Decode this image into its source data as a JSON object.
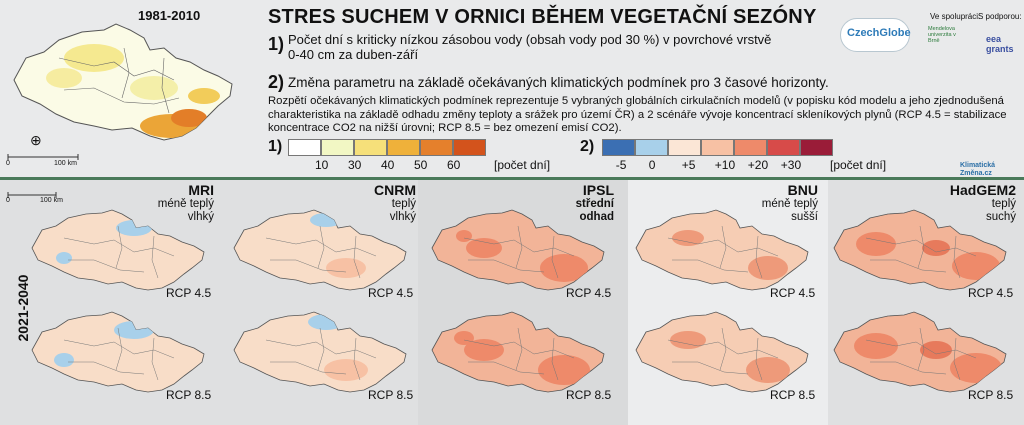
{
  "header": {
    "period": "1981-2010",
    "title": "STRES SUCHEM V ORNICI BĚHEM VEGETAČNÍ SEZÓNY",
    "item1_num": "1)",
    "item1_line1": "Počet dní s kriticky nízkou zásobou vody (obsah vody pod 30 %) v povrchové vrstvě",
    "item1_line2": "0-40 cm za duben-září",
    "item2_num": "2)",
    "item2_text": "Změna parametru na základě očekávaných klimatických podmínek pro 3 časové horizonty.",
    "note": "Rozpětí očekávaných klimatických podmínek reprezentuje 5 vybraných globálních cirkulačních modelů (v popisku kód modelu a jeho zjednodušená charakteristika na základě odhadu změny teploty a srážek pro území ČR) a 2 scénáře vývoje koncentrací skleníkových plynů (RCP 4.5 = stabilizace koncentrace CO2 na nižší úrovni; RCP 8.5 = bez omezení emisí CO2)."
  },
  "logos": {
    "czechglobe": "CzechGlobe",
    "ve_spolupraci": "Ve spolupráci:",
    "s_podporou": "S podporou:",
    "mendel": "Mendelova univerzita v Brně",
    "eea": "eea grants",
    "klimaticka": "Klimatická",
    "zmena": "Změna.cz"
  },
  "legend1": {
    "label": "1)",
    "ticks": [
      "10",
      "30",
      "40",
      "50",
      "60"
    ],
    "unit": "[počet dní]",
    "colors": [
      "#ffffff",
      "#f2f7c4",
      "#f6e07a",
      "#efb13a",
      "#e5802c",
      "#d3531c"
    ]
  },
  "legend2": {
    "label": "2)",
    "ticks": [
      "-5",
      "0",
      "+5",
      "+10",
      "+20",
      "+30"
    ],
    "unit": "[počet dní]",
    "colors": [
      "#3b6fb3",
      "#a8d0ea",
      "#fbe6d6",
      "#f7c1a4",
      "#ee8a6a",
      "#d74b49",
      "#9a1c38"
    ]
  },
  "scale": {
    "zero": "0",
    "dist": "100 km"
  },
  "horizon": "2021-2040",
  "models": [
    {
      "name": "MRI",
      "sub1": "méně teplý",
      "sub2": "vlhký",
      "bold_sub": false
    },
    {
      "name": "CNRM",
      "sub1": "teplý",
      "sub2": "vlhký",
      "bold_sub": false
    },
    {
      "name": "IPSL",
      "sub1": "střední",
      "sub2": "odhad",
      "bold_sub": true
    },
    {
      "name": "BNU",
      "sub1": "méně teplý",
      "sub2": "sušší",
      "bold_sub": false
    },
    {
      "name": "HadGEM2",
      "sub1": "teplý",
      "sub2": "suchý",
      "bold_sub": false
    }
  ],
  "rcp": {
    "r45": "RCP 4.5",
    "r85": "RCP 8.5"
  }
}
